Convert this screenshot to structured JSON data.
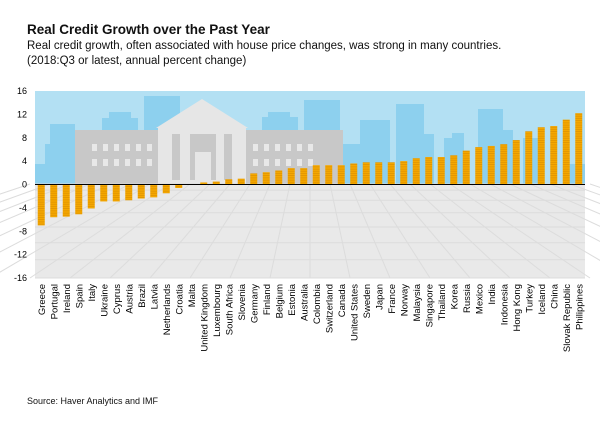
{
  "chart_data": {
    "type": "bar",
    "title": "Real Credit Growth over the Past Year",
    "subtitle_lines": [
      "Real credit growth, often associated with house price changes, was strong in many countries.",
      "(2018:Q3 or latest, annual percent change)"
    ],
    "source": "Source: Haver Analytics and IMF",
    "xlabel": "",
    "ylabel": "",
    "ylim": [
      -16,
      16
    ],
    "yticks": [
      16,
      12,
      8,
      4,
      0,
      -4,
      -8,
      -12,
      -16
    ],
    "grid": false,
    "bar_color": "#F5A800",
    "categories": [
      "Greece",
      "Portugal",
      "Ireland",
      "Spain",
      "Italy",
      "Ukraine",
      "Cyprus",
      "Austria",
      "Brazil",
      "Latvia",
      "Netherlands",
      "Croatia",
      "Malta",
      "United Kingdom",
      "Luxembourg",
      "South Africa",
      "Slovenia",
      "Germany",
      "Finland",
      "Belgium",
      "Estonia",
      "Australia",
      "Colombia",
      "Switzerland",
      "Canada",
      "United States",
      "Sweden",
      "Japan",
      "France",
      "Norway",
      "Malaysia",
      "Singapore",
      "Thailand",
      "Korea",
      "Russia",
      "Mexico",
      "India",
      "Indonesia",
      "Hong Kong",
      "Turkey",
      "Iceland",
      "China",
      "Slovak Republic",
      "Philippines"
    ],
    "values": [
      -7.0,
      -5.6,
      -5.5,
      -5.1,
      -4.1,
      -2.9,
      -2.9,
      -2.7,
      -2.4,
      -2.2,
      -1.5,
      -0.6,
      0.0,
      0.35,
      0.5,
      0.9,
      1.0,
      1.9,
      2.1,
      2.4,
      2.8,
      2.8,
      3.3,
      3.3,
      3.3,
      3.6,
      3.8,
      3.8,
      3.8,
      4.0,
      4.5,
      4.7,
      4.7,
      5.0,
      5.8,
      6.4,
      6.6,
      6.9,
      7.6,
      9.1,
      9.8,
      10.0,
      11.1,
      12.2
    ]
  }
}
